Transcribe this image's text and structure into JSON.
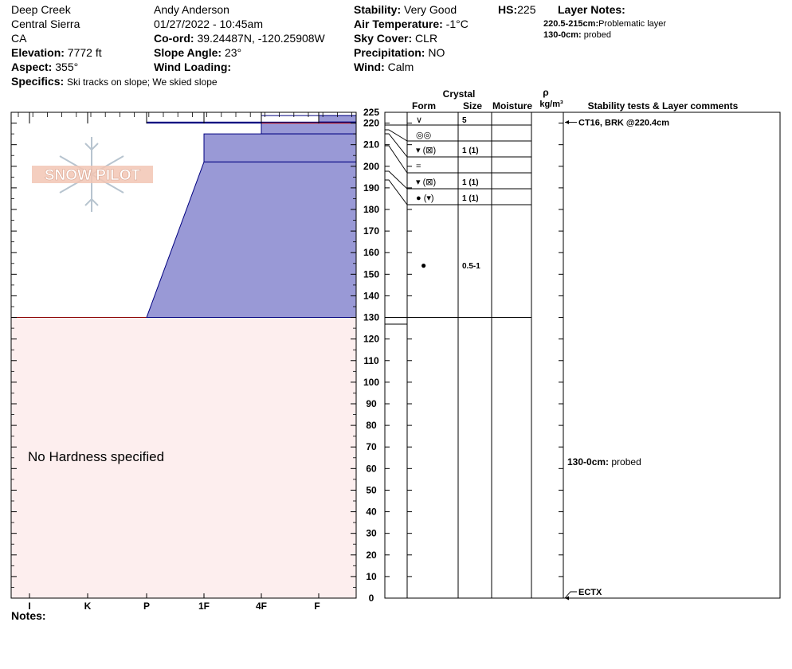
{
  "header": {
    "location": "Deep Creek",
    "range": "Central Sierra",
    "state": "CA",
    "elevation_label": "Elevation:",
    "elevation": "7772 ft",
    "aspect_label": "Aspect:",
    "aspect": "355°",
    "specifics_label": "Specifics:",
    "specifics": "Ski tracks on slope; We skied slope",
    "observer": "Andy Anderson",
    "datetime": "01/27/2022 - 10:45am",
    "coord_label": "Co-ord:",
    "coord": "39.24487N, -120.25908W",
    "slope_label": "Slope Angle:",
    "slope": "23°",
    "wind_loading_label": "Wind Loading:",
    "wind_loading": "",
    "stability_label": "Stability:",
    "stability": "Very Good",
    "air_temp_label": "Air Temperature:",
    "air_temp": "-1°C",
    "sky_label": "Sky Cover:",
    "sky": "CLR",
    "precip_label": "Precipitation:",
    "precip": "NO",
    "wind_label": "Wind:",
    "wind": "Calm",
    "hs_label": "HS:",
    "hs": "225",
    "layer_notes_label": "Layer Notes:",
    "layer_notes": [
      {
        "range": "220.5-215cm:",
        "text": "Problematic layer"
      },
      {
        "range": "130-0cm:",
        "text": "probed"
      }
    ]
  },
  "logo_text": "SNOW PILOT",
  "no_hardness_text": "No Hardness specified",
  "notes_label": "Notes:",
  "columns": {
    "crystal": "Crystal",
    "form": "Form",
    "size": "Size",
    "moisture": "Moisture",
    "rho": "ρ",
    "density_unit": "kg/m³",
    "comments": "Stability tests & Layer comments"
  },
  "colors": {
    "hardness_fill": "#9999d6",
    "hardness_stroke": "#000080",
    "unspecified_fill": "#fdeeee",
    "unspecified_stroke": "#8b0000"
  },
  "chart_data": {
    "type": "snow_profile",
    "y_axis": {
      "min": 0,
      "max": 225,
      "ticks": [
        0,
        10,
        20,
        30,
        40,
        50,
        60,
        70,
        80,
        90,
        100,
        110,
        120,
        130,
        140,
        150,
        160,
        170,
        180,
        190,
        200,
        210,
        220,
        225
      ]
    },
    "x_axis": {
      "categories": [
        "I",
        "K",
        "P",
        "1F",
        "4F",
        "F"
      ]
    },
    "hardness_layers": [
      {
        "top": 225,
        "bottom": 223.5,
        "hardness": "F-"
      },
      {
        "top": 223.5,
        "bottom": 220.5,
        "hardness": "F"
      },
      {
        "top": 220.5,
        "bottom": 220,
        "hardness": "P"
      },
      {
        "top": 220,
        "bottom": 215,
        "hardness": "4F"
      },
      {
        "top": 215,
        "bottom": 202,
        "hardness": "1F"
      },
      {
        "top": 202,
        "bottom": 130,
        "hardness": "1F to P"
      }
    ],
    "no_hardness_range": {
      "top": 130,
      "bottom": 0
    },
    "grain_rows": [
      {
        "form": "∨",
        "size": "5"
      },
      {
        "form": "◎◎",
        "size": ""
      },
      {
        "form": "▾ (⊠)",
        "size": "1 (1)"
      },
      {
        "form": "=",
        "size": ""
      },
      {
        "form": "▾ (⊠)",
        "size": "1 (1)"
      },
      {
        "form": "● (▾)",
        "size": "1 (1)"
      },
      {
        "form": "●",
        "size": "0.5-1"
      }
    ],
    "stability_tests": [
      {
        "depth": 220.4,
        "text": "CT16, BRK @220.4cm"
      },
      {
        "depth": 0,
        "text": "ECTX"
      }
    ],
    "layer_comments": [
      {
        "depth": 63,
        "range": "130-0cm:",
        "text": "probed"
      }
    ]
  }
}
